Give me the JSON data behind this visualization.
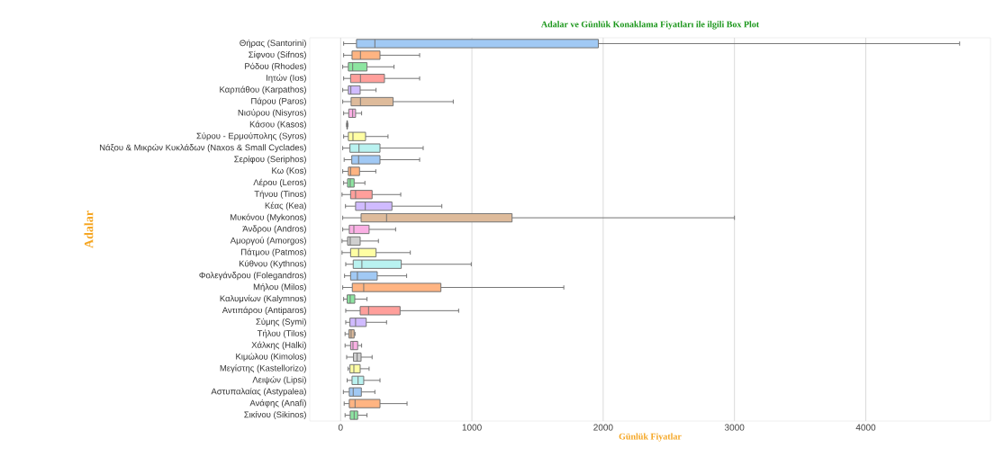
{
  "chart_data": {
    "type": "box",
    "orientation": "horizontal",
    "title": "Adalar ve Günlük Konaklama Fiyatları ile ilgili Box Plot",
    "xlabel": "Günlük Fiyatlar",
    "ylabel": "Adalar",
    "categories": [
      "Θήρας (Santorini)",
      "Σίφνου (Sifnos)",
      "Ρόδου (Rhodes)",
      "Ιητών (Ios)",
      "Καρπάθου (Karpathos)",
      "Πάρου (Paros)",
      "Νισύρου (Nisyros)",
      "Κάσου (Kasos)",
      "Σύρου - Ερμούπολης (Syros)",
      "Νάξου & Μικρών Κυκλάδων (Naxos & Small Cyclades)",
      "Σερίφου (Seriphos)",
      "Κω (Kos)",
      "Λέρου (Leros)",
      "Τήνου (Tinos)",
      "Κέας (Kea)",
      "Μυκόνου (Mykonos)",
      "Άνδρου (Andros)",
      "Αμοργού (Amorgos)",
      "Πάτμου (Patmos)",
      "Κύθνου (Kythnos)",
      "Φολεγάνδρου (Folegandros)",
      "Μήλου (Milos)",
      "Καλυμνίων (Kalymnos)",
      "Αντιπάρου (Antiparos)",
      "Σύμης (Symi)",
      "Τήλου (Tilos)",
      "Χάλκης (Halki)",
      "Κιμώλου (Kimolos)",
      "Μεγίστης (Kastellorizo)",
      "Λειψών (Lipsi)",
      "Αστυπαλαίας (Astypalea)",
      "Ανάφης (Anafi)",
      "Σικίνου (Sikinos)"
    ],
    "boxes": [
      {
        "low": 23,
        "q1": 121,
        "median": 261,
        "q3": 1963,
        "high": 4715
      },
      {
        "low": 23,
        "q1": 87,
        "median": 151,
        "q3": 300,
        "high": 602
      },
      {
        "low": 16,
        "q1": 59,
        "median": 92,
        "q3": 201,
        "high": 407
      },
      {
        "low": 23,
        "q1": 76,
        "median": 151,
        "q3": 334,
        "high": 602
      },
      {
        "low": 16,
        "q1": 59,
        "median": 78,
        "q3": 149,
        "high": 270
      },
      {
        "low": 16,
        "q1": 80,
        "median": 151,
        "q3": 400,
        "high": 858
      },
      {
        "low": 23,
        "q1": 62,
        "median": 92,
        "q3": 114,
        "high": 160
      },
      {
        "low": 45,
        "q1": 48,
        "median": 50,
        "q3": 52,
        "high": 55
      },
      {
        "low": 23,
        "q1": 59,
        "median": 94,
        "q3": 190,
        "high": 361
      },
      {
        "low": 16,
        "q1": 71,
        "median": 140,
        "q3": 300,
        "high": 629
      },
      {
        "low": 27,
        "q1": 85,
        "median": 137,
        "q3": 300,
        "high": 602
      },
      {
        "low": 16,
        "q1": 59,
        "median": 76,
        "q3": 144,
        "high": 268
      },
      {
        "low": 23,
        "q1": 53,
        "median": 73,
        "q3": 103,
        "high": 185
      },
      {
        "low": 11,
        "q1": 76,
        "median": 114,
        "q3": 240,
        "high": 458
      },
      {
        "low": 37,
        "q1": 114,
        "median": 188,
        "q3": 391,
        "high": 771
      },
      {
        "low": 16,
        "q1": 156,
        "median": 350,
        "q3": 1306,
        "high": 3000
      },
      {
        "low": 16,
        "q1": 66,
        "median": 101,
        "q3": 217,
        "high": 419
      },
      {
        "low": 11,
        "q1": 53,
        "median": 73,
        "q3": 149,
        "high": 288
      },
      {
        "low": 11,
        "q1": 76,
        "median": 137,
        "q3": 270,
        "high": 531
      },
      {
        "low": 39,
        "q1": 96,
        "median": 162,
        "q3": 462,
        "high": 995
      },
      {
        "low": 30,
        "q1": 76,
        "median": 128,
        "q3": 279,
        "high": 503
      },
      {
        "low": 16,
        "q1": 89,
        "median": 176,
        "q3": 764,
        "high": 1700
      },
      {
        "low": 23,
        "q1": 50,
        "median": 73,
        "q3": 108,
        "high": 201
      },
      {
        "low": 39,
        "q1": 149,
        "median": 213,
        "q3": 453,
        "high": 899
      },
      {
        "low": 39,
        "q1": 71,
        "median": 114,
        "q3": 195,
        "high": 350
      },
      {
        "low": 34,
        "q1": 64,
        "median": 80,
        "q3": 103,
        "high": 110
      },
      {
        "low": 34,
        "q1": 76,
        "median": 94,
        "q3": 130,
        "high": 160
      },
      {
        "low": 46,
        "q1": 98,
        "median": 126,
        "q3": 156,
        "high": 240
      },
      {
        "low": 57,
        "q1": 71,
        "median": 101,
        "q3": 149,
        "high": 217
      },
      {
        "low": 50,
        "q1": 87,
        "median": 133,
        "q3": 176,
        "high": 300
      },
      {
        "low": 21,
        "q1": 66,
        "median": 96,
        "q3": 158,
        "high": 261
      },
      {
        "low": 27,
        "q1": 66,
        "median": 110,
        "q3": 300,
        "high": 506
      },
      {
        "low": 34,
        "q1": 73,
        "median": 103,
        "q3": 130,
        "high": 201
      }
    ],
    "colors": [
      "#a1c9f4",
      "#ffb482",
      "#8de5a1",
      "#ff9f9b",
      "#d0bbff",
      "#debb9b",
      "#fab0e4",
      "#cfcfcf",
      "#fffea3",
      "#b9f2f0",
      "#a1c9f4",
      "#ffb482",
      "#8de5a1",
      "#ff9f9b",
      "#d0bbff",
      "#debb9b",
      "#fab0e4",
      "#cfcfcf",
      "#fffea3",
      "#b9f2f0",
      "#a1c9f4",
      "#ffb482",
      "#8de5a1",
      "#ff9f9b",
      "#d0bbff",
      "#debb9b",
      "#fab0e4",
      "#cfcfcf",
      "#fffea3",
      "#b9f2f0",
      "#a1c9f4",
      "#ffb482",
      "#8de5a1"
    ],
    "xlim": [
      -235,
      4950
    ],
    "xticks": [
      0,
      1000,
      2000,
      3000,
      4000
    ],
    "grid": "x"
  }
}
